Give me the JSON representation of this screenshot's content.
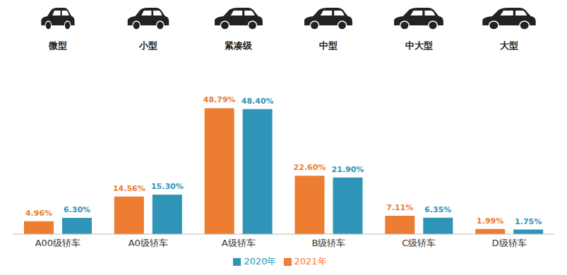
{
  "chart_data": {
    "type": "bar",
    "annotations": [
      "微型",
      "小型",
      "紧凑级",
      "中型",
      "中大型",
      "大型"
    ],
    "categories": [
      "A00级轿车",
      "A0级轿车",
      "A级轿车",
      "B级轿车",
      "C级轿车",
      "D级轿车"
    ],
    "series": [
      {
        "name": "2021年",
        "color": "#ED7D31",
        "values": [
          4.96,
          14.56,
          48.79,
          22.6,
          7.11,
          1.99
        ],
        "value_labels": [
          "4.96%",
          "14.56%",
          "48.79%",
          "22.60%",
          "7.11%",
          "1.99%"
        ]
      },
      {
        "name": "2020年",
        "color": "#2E95B8",
        "values": [
          6.3,
          15.3,
          48.4,
          21.9,
          6.35,
          1.75
        ],
        "value_labels": [
          "6.30%",
          "15.30%",
          "48.40%",
          "21.90%",
          "6.35%",
          "1.75%"
        ]
      }
    ],
    "ylim": [
      0,
      50
    ],
    "data_labels": true,
    "tick_labels": "x",
    "grid": false,
    "legend": "bottom"
  }
}
